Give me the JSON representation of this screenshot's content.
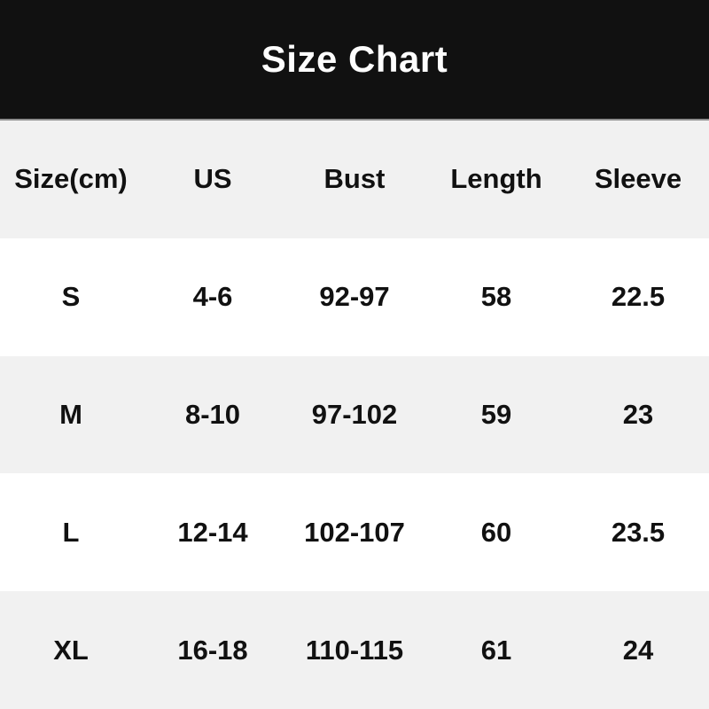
{
  "title": "Size Chart",
  "colors": {
    "banner_bg": "#111111",
    "banner_border": "#8f8f8f",
    "title_text": "#fdfdfd",
    "row_alt_bg": "#f1f1f1",
    "row_bg": "#ffffff",
    "cell_text": "#111111"
  },
  "table": {
    "columns": [
      "Size(cm)",
      "US",
      "Bust",
      "Length",
      "Sleeve"
    ],
    "rows": [
      [
        "S",
        "4-6",
        "92-97",
        "58",
        "22.5"
      ],
      [
        "M",
        "8-10",
        "97-102",
        "59",
        "23"
      ],
      [
        "L",
        "12-14",
        "102-107",
        "60",
        "23.5"
      ],
      [
        "XL",
        "16-18",
        "110-115",
        "61",
        "24"
      ]
    ]
  },
  "chart_data": {
    "type": "table",
    "title": "Size Chart",
    "unit_note": "Size(cm)",
    "columns": [
      "Size(cm)",
      "US",
      "Bust",
      "Length",
      "Sleeve"
    ],
    "rows": [
      {
        "size": "S",
        "us": "4-6",
        "bust": "92-97",
        "length": 58,
        "sleeve": 22.5
      },
      {
        "size": "M",
        "us": "8-10",
        "bust": "97-102",
        "length": 59,
        "sleeve": 23
      },
      {
        "size": "L",
        "us": "12-14",
        "bust": "102-107",
        "length": 60,
        "sleeve": 23.5
      },
      {
        "size": "XL",
        "us": "16-18",
        "bust": "110-115",
        "length": 61,
        "sleeve": 24
      }
    ]
  }
}
